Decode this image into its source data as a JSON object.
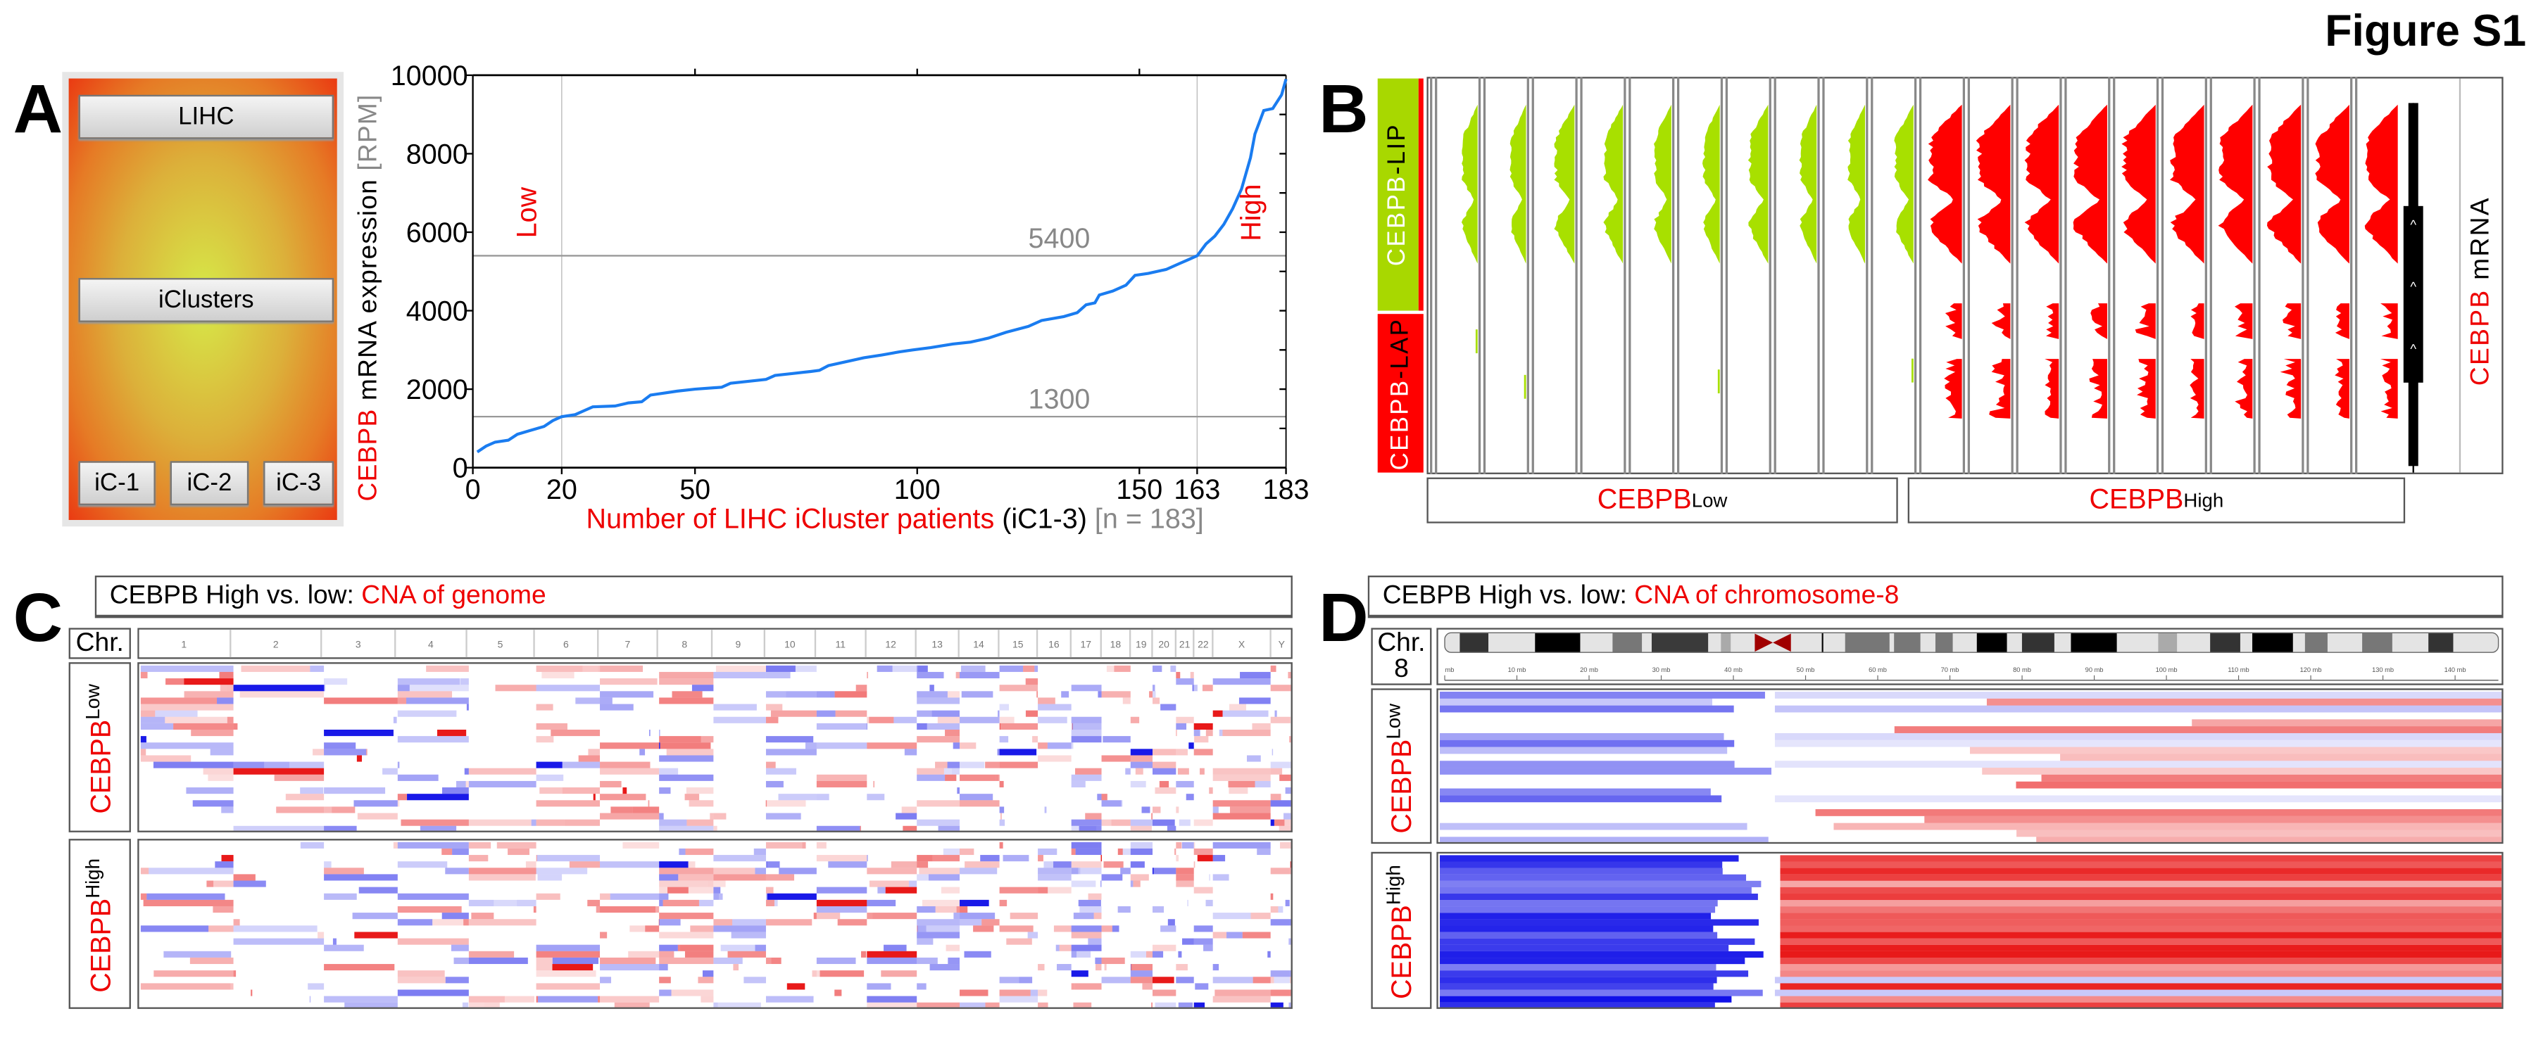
{
  "figure_label": "Figure S1",
  "panel_a": {
    "label": "A",
    "buttons": {
      "lihc": "LIHC",
      "iclusters": "iClusters",
      "ic1": "iC-1",
      "ic2": "iC-2",
      "ic3": "iC-3"
    },
    "gradient_colors": {
      "center": "#d6ea48",
      "edge": "#ea3a12"
    }
  },
  "chart_data": {
    "type": "line",
    "title": "",
    "ylabel_parts": [
      "CEBPB",
      " mRNA expression ",
      "[RPM]"
    ],
    "xlabel_parts": [
      "Number of LIHC iCluster patients",
      " (iC1-3) ",
      "[n = 183]"
    ],
    "xlim": [
      0,
      183
    ],
    "ylim": [
      0,
      10000
    ],
    "xticks": [
      0,
      20,
      50,
      100,
      150,
      163,
      183
    ],
    "yticks": [
      0,
      2000,
      4000,
      6000,
      8000,
      10000
    ],
    "grid": false,
    "series": [
      {
        "color": "#1a7cf0",
        "points": [
          [
            1,
            400
          ],
          [
            3,
            550
          ],
          [
            5,
            650
          ],
          [
            8,
            700
          ],
          [
            10,
            850
          ],
          [
            13,
            950
          ],
          [
            16,
            1050
          ],
          [
            18,
            1200
          ],
          [
            20,
            1300
          ],
          [
            23,
            1350
          ],
          [
            25,
            1450
          ],
          [
            27,
            1550
          ],
          [
            32,
            1570
          ],
          [
            35,
            1650
          ],
          [
            38,
            1680
          ],
          [
            40,
            1850
          ],
          [
            43,
            1900
          ],
          [
            46,
            1950
          ],
          [
            50,
            2000
          ],
          [
            56,
            2050
          ],
          [
            58,
            2150
          ],
          [
            62,
            2200
          ],
          [
            66,
            2250
          ],
          [
            68,
            2350
          ],
          [
            72,
            2400
          ],
          [
            76,
            2450
          ],
          [
            78,
            2480
          ],
          [
            80,
            2600
          ],
          [
            84,
            2700
          ],
          [
            88,
            2800
          ],
          [
            92,
            2870
          ],
          [
            96,
            2950
          ],
          [
            99,
            3000
          ],
          [
            103,
            3060
          ],
          [
            108,
            3150
          ],
          [
            112,
            3200
          ],
          [
            116,
            3300
          ],
          [
            120,
            3450
          ],
          [
            125,
            3600
          ],
          [
            128,
            3750
          ],
          [
            133,
            3850
          ],
          [
            136,
            3950
          ],
          [
            138,
            4150
          ],
          [
            140,
            4200
          ],
          [
            141,
            4400
          ],
          [
            144,
            4500
          ],
          [
            147,
            4650
          ],
          [
            149,
            4900
          ],
          [
            152,
            4950
          ],
          [
            156,
            5050
          ],
          [
            159,
            5200
          ],
          [
            161,
            5300
          ],
          [
            163,
            5400
          ],
          [
            165,
            5700
          ],
          [
            167,
            5900
          ],
          [
            169,
            6200
          ],
          [
            171,
            6600
          ],
          [
            173,
            7100
          ],
          [
            175,
            7900
          ],
          [
            176,
            8500
          ],
          [
            177,
            8800
          ],
          [
            178,
            9100
          ],
          [
            180,
            9150
          ],
          [
            182,
            9500
          ],
          [
            183,
            9900
          ]
        ]
      }
    ],
    "reference_lines": {
      "horizontal": [
        {
          "y": 5400,
          "label": "5400"
        },
        {
          "y": 1300,
          "label": "1300"
        }
      ],
      "vertical": [
        20,
        163
      ]
    },
    "annotations": [
      {
        "text": "Low",
        "x": 12,
        "y": 6500
      },
      {
        "text": "High",
        "x": 175,
        "y": 6500
      }
    ],
    "colors": {
      "annotation": "#ee0000",
      "reference": "#999999"
    }
  },
  "panel_b": {
    "label": "B",
    "lip_label": [
      "CEBPB",
      "-LIP"
    ],
    "lap_label": [
      "CEBPB",
      "-LAP"
    ],
    "mrna_label": [
      "CEBPB",
      " mRNA"
    ],
    "groups": [
      {
        "base": "CEBPB",
        "sup": "Low"
      },
      {
        "base": "CEBPB",
        "sup": "High"
      }
    ],
    "colors": {
      "lip": "#a8e000",
      "lap": "#ff0000",
      "low_signal": "#a8e000",
      "high_signal": "#ff0000"
    }
  },
  "panel_c": {
    "label": "C",
    "title": [
      "CEBPB High vs. low: ",
      "CNA of genome"
    ],
    "chr_label": "Chr.",
    "chromosomes": [
      "1",
      "2",
      "3",
      "4",
      "5",
      "6",
      "7",
      "8",
      "9",
      "10",
      "11",
      "12",
      "13",
      "14",
      "15",
      "16",
      "17",
      "18",
      "19",
      "20",
      "21",
      "22",
      "X",
      "Y"
    ],
    "rows": [
      {
        "base": "CEBPB",
        "sup": "Low"
      },
      {
        "base": "CEBPB",
        "sup": "High"
      }
    ],
    "colors": {
      "gain": "#e60000",
      "loss": "#0000e6"
    }
  },
  "panel_d": {
    "label": "D",
    "title": [
      "CEBPB High vs. low: ",
      "CNA of chromosome-8"
    ],
    "chr_label": "Chr.",
    "chr_number": "8",
    "scale_labels": [
      "mb",
      "10 mb",
      "20 mb",
      "30 mb",
      "40 mb",
      "50 mb",
      "60 mb",
      "70 mb",
      "80 mb",
      "90 mb",
      "100 mb",
      "110 mb",
      "120 mb",
      "130 mb",
      "140 mb"
    ],
    "rows": [
      {
        "base": "CEBPB",
        "sup": "Low"
      },
      {
        "base": "CEBPB",
        "sup": "High"
      }
    ]
  }
}
